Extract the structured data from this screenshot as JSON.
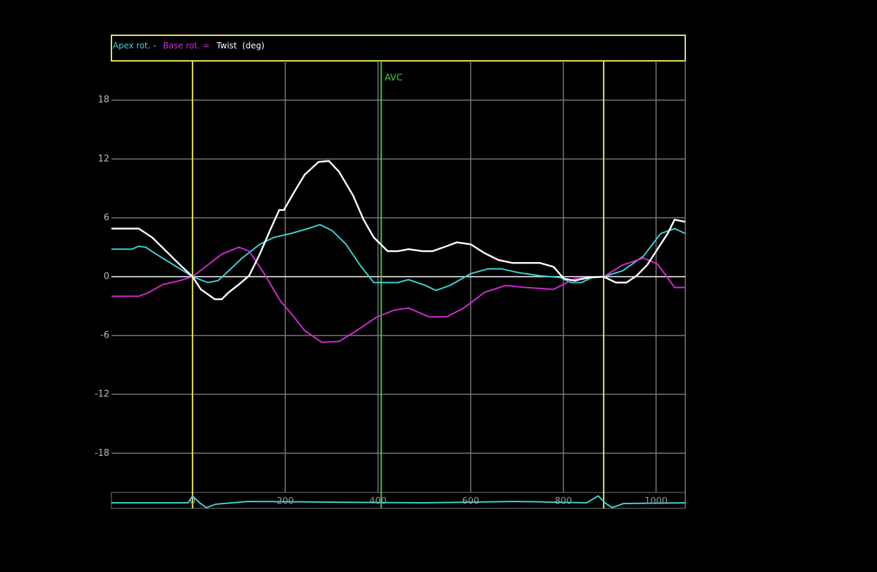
{
  "chart_data": {
    "type": "line",
    "legend_operators": [
      "-",
      "="
    ],
    "unit": "(deg)",
    "xlim": [
      -175,
      1063
    ],
    "ylim": [
      -22,
      22
    ],
    "xticks": [
      0,
      200,
      400,
      600,
      800,
      1000
    ],
    "yticks": [
      -18,
      -12,
      -6,
      0,
      6,
      12,
      18
    ],
    "grid": true,
    "series": [
      {
        "name": "Apex rot.",
        "color": "#3cd4d8",
        "x": [
          -175,
          -131,
          -116,
          -101,
          -72,
          -27,
          0,
          33,
          55,
          78,
          107,
          145,
          175,
          212,
          249,
          275,
          301,
          331,
          361,
          391,
          443,
          466,
          503,
          525,
          555,
          600,
          637,
          667,
          704,
          749,
          794,
          816,
          839,
          861,
          887,
          928,
          973,
          1010,
          1040,
          1063
        ],
        "values": [
          2.8,
          2.8,
          3.1,
          3.0,
          2.1,
          0.8,
          0,
          -0.6,
          -0.4,
          0.6,
          1.9,
          3.3,
          4.0,
          4.4,
          4.9,
          5.3,
          4.7,
          3.3,
          1.2,
          -0.6,
          -0.6,
          -0.3,
          -0.9,
          -1.4,
          -0.9,
          0.3,
          0.8,
          0.8,
          0.4,
          0.1,
          -0.1,
          -0.6,
          -0.6,
          -0.1,
          0,
          0.6,
          2.1,
          4.4,
          4.9,
          4.4
        ]
      },
      {
        "name": "Base rot.",
        "color": "#d22ad2",
        "x": [
          -175,
          -116,
          -94,
          -64,
          -27,
          0,
          33,
          63,
          100,
          122,
          152,
          190,
          212,
          242,
          279,
          316,
          354,
          398,
          436,
          466,
          510,
          548,
          585,
          630,
          675,
          719,
          779,
          824,
          887,
          928,
          973,
          1003,
          1040,
          1063
        ],
        "values": [
          -2.0,
          -2.0,
          -1.6,
          -0.8,
          -0.4,
          0,
          1.2,
          2.3,
          3.0,
          2.6,
          0.5,
          -2.5,
          -3.7,
          -5.5,
          -6.7,
          -6.6,
          -5.5,
          -4.1,
          -3.4,
          -3.2,
          -4.1,
          -4.1,
          -3.2,
          -1.6,
          -0.9,
          -1.1,
          -1.3,
          -0.2,
          0,
          1.2,
          1.9,
          1.3,
          -1.1,
          -1.1
        ]
      },
      {
        "name": "Twist",
        "color": "#ffffff",
        "x": [
          -175,
          -131,
          -116,
          -87,
          -57,
          -27,
          0,
          18,
          48,
          63,
          78,
          100,
          122,
          145,
          167,
          187,
          197,
          219,
          242,
          272,
          294,
          316,
          346,
          369,
          391,
          421,
          443,
          466,
          496,
          518,
          548,
          570,
          600,
          630,
          660,
          690,
          749,
          779,
          801,
          824,
          854,
          887,
          913,
          936,
          958,
          981,
          1003,
          1025,
          1040,
          1063
        ],
        "values": [
          4.9,
          4.9,
          4.9,
          4.0,
          2.6,
          1.2,
          0,
          -1.3,
          -2.3,
          -2.3,
          -1.6,
          -0.8,
          0.1,
          2.3,
          4.7,
          6.8,
          6.8,
          8.6,
          10.4,
          11.7,
          11.8,
          10.7,
          8.3,
          5.8,
          4.0,
          2.6,
          2.6,
          2.8,
          2.6,
          2.6,
          3.1,
          3.5,
          3.3,
          2.4,
          1.7,
          1.4,
          1.4,
          1.0,
          -0.2,
          -0.4,
          -0.1,
          0,
          -0.6,
          -0.6,
          0.1,
          1.2,
          2.8,
          4.4,
          5.8,
          5.6
        ]
      }
    ],
    "markers": [
      {
        "x": 0,
        "color": "#e6e65a"
      },
      {
        "x": 407,
        "label": "AVC",
        "color": "#3fc83f"
      },
      {
        "x": 887,
        "color": "#e6e65a"
      }
    ],
    "ecg": {
      "color": "#3cd4d8",
      "x": [
        -175,
        -10,
        0,
        15,
        30,
        50,
        120,
        300,
        500,
        700,
        850,
        875,
        890,
        905,
        930,
        1063
      ],
      "values": [
        0,
        0,
        1.0,
        0,
        -0.7,
        -0.2,
        0.2,
        0.1,
        0,
        0.2,
        0,
        1.0,
        0,
        -0.7,
        -0.1,
        0
      ]
    }
  }
}
